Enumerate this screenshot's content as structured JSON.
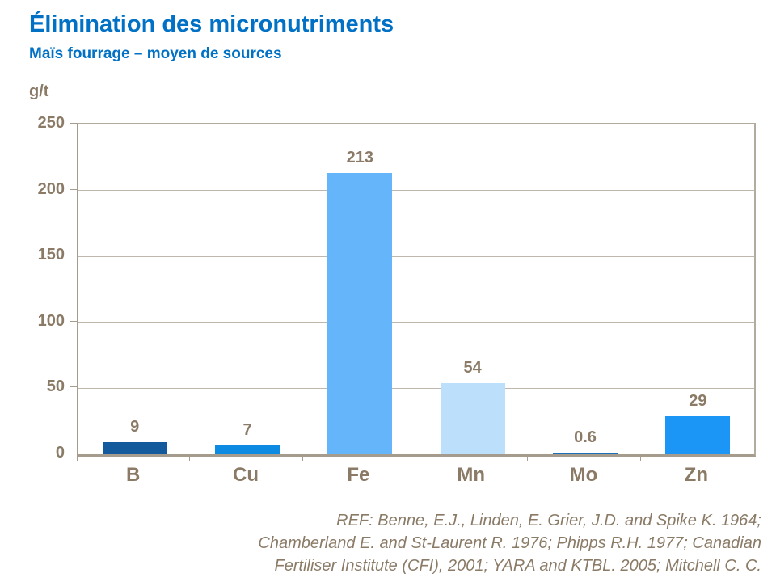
{
  "header": {
    "title": "Élimination des micronutriments",
    "subtitle": "Maïs fourrage – moyen de sources"
  },
  "chart_data": {
    "type": "bar",
    "title": "Élimination des micronutriments",
    "subtitle": "Maïs fourrage – moyen de sources",
    "unit_label": "g/t",
    "categories": [
      "B",
      "Cu",
      "Fe",
      "Mn",
      "Mo",
      "Zn"
    ],
    "values": [
      9,
      7,
      213,
      54,
      0.6,
      29
    ],
    "value_labels": [
      "9",
      "7",
      "213",
      "54",
      "0.6",
      "29"
    ],
    "bar_colors": [
      "#135A9C",
      "#0D8BE2",
      "#64B5F9",
      "#BCE0FB",
      "#1C70B8",
      "#1B96F7"
    ],
    "xlabel": "",
    "ylabel": "g/t",
    "ylim": [
      0,
      250
    ],
    "yticks": [
      0,
      50,
      100,
      150,
      200,
      250
    ],
    "grid": true,
    "legend": "none"
  },
  "footer": {
    "reference_lines": [
      "REF: Benne, E.J., Linden, E. Grier, J.D. and Spike K. 1964;",
      "Chamberland  E. and St-Laurent R. 1976; Phipps R.H. 1977; Canadian",
      "Fertiliser Institute (CFI), 2001; YARA and KTBL. 2005; Mitchell C. C."
    ]
  },
  "colors": {
    "title_blue": "#0071C5",
    "text_brown": "#8A7A66",
    "axis_line": "#A69C8E",
    "gridline": "#BFB7AC"
  }
}
